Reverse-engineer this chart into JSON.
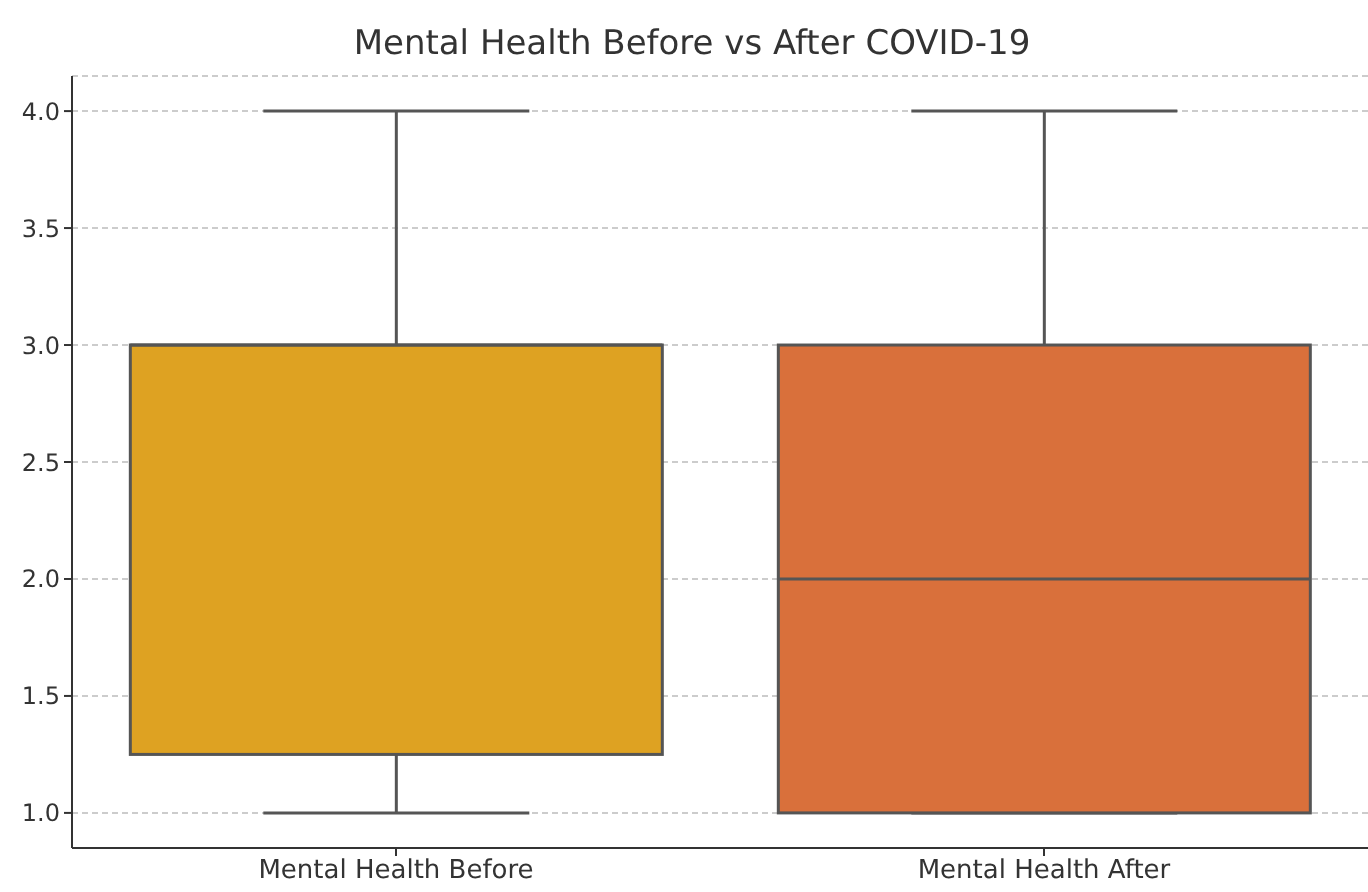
{
  "chart_data": {
    "type": "box",
    "title": "Mental Health Before vs After COVID-19",
    "categories": [
      "Mental Health Before",
      "Mental Health After"
    ],
    "boxes": [
      {
        "low": 1.0,
        "q1": 1.25,
        "median": 3.0,
        "q3": 3.0,
        "high": 4.0
      },
      {
        "low": 1.0,
        "q1": 1.0,
        "median": 2.0,
        "q3": 3.0,
        "high": 4.0
      }
    ],
    "colors": [
      "#dea222",
      "#d9703b"
    ],
    "ylim": [
      0.85,
      4.15
    ],
    "yticks": [
      {
        "value": 1,
        "label": "1.0"
      },
      {
        "value": 1.5,
        "label": "1.5"
      },
      {
        "value": 2,
        "label": "2.0"
      },
      {
        "value": 2.5,
        "label": "2.5"
      },
      {
        "value": 3,
        "label": "3.0"
      },
      {
        "value": 3.5,
        "label": "3.5"
      },
      {
        "value": 4,
        "label": "4.0"
      }
    ],
    "grid": "y"
  }
}
